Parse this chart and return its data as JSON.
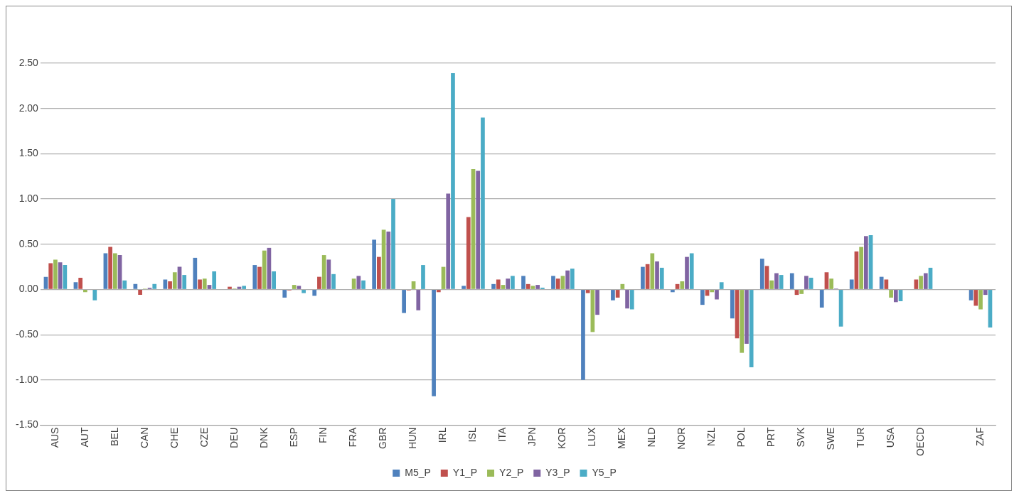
{
  "chart_data": {
    "type": "bar",
    "categories": [
      "AUS",
      "AUT",
      "BEL",
      "CAN",
      "CHE",
      "CZE",
      "DEU",
      "DNK",
      "ESP",
      "FIN",
      "FRA",
      "GBR",
      "HUN",
      "IRL",
      "ISL",
      "ITA",
      "JPN",
      "KOR",
      "LUX",
      "MEX",
      "NLD",
      "NOR",
      "NZL",
      "POL",
      "PRT",
      "SVK",
      "SWE",
      "TUR",
      "USA",
      "OECD",
      null,
      "ZAF"
    ],
    "series": [
      {
        "name": "M5_P",
        "color": "#4f81bd",
        "values": [
          0.14,
          0.08,
          0.4,
          0.06,
          0.11,
          0.35,
          0.0,
          0.27,
          -0.09,
          -0.07,
          0,
          0.55,
          -0.26,
          -1.18,
          0.04,
          0.06,
          0.15,
          0.15,
          -1.0,
          -0.12,
          0.25,
          -0.03,
          -0.17,
          -0.32,
          0.34,
          0.18,
          -0.2,
          0.11,
          0.14,
          0,
          null,
          -0.12
        ]
      },
      {
        "name": "Y1_P",
        "color": "#c0504d",
        "values": [
          0.29,
          0.13,
          0.47,
          -0.06,
          0.09,
          0.11,
          0.03,
          0.25,
          -0.01,
          0.14,
          0,
          0.36,
          -0.01,
          -0.03,
          0.8,
          0.11,
          0.06,
          0.12,
          -0.04,
          -0.09,
          0.28,
          0.06,
          -0.07,
          -0.54,
          0.26,
          -0.06,
          0.19,
          0.42,
          0.11,
          0.11,
          null,
          -0.18
        ]
      },
      {
        "name": "Y2_P",
        "color": "#9bbb59",
        "values": [
          0.33,
          -0.03,
          0.4,
          0.01,
          0.19,
          0.12,
          0.01,
          0.43,
          0.05,
          0.38,
          0.12,
          0.66,
          0.09,
          0.25,
          1.33,
          0.05,
          0.04,
          0.15,
          -0.47,
          0.06,
          0.4,
          0.09,
          -0.03,
          -0.7,
          0.1,
          -0.05,
          0.12,
          0.47,
          -0.09,
          0.15,
          null,
          -0.22
        ]
      },
      {
        "name": "Y3_P",
        "color": "#8064a2",
        "values": [
          0.3,
          0,
          0.38,
          0.02,
          0.25,
          0.05,
          0.03,
          0.46,
          0.04,
          0.33,
          0.15,
          0.64,
          -0.23,
          1.06,
          1.31,
          0.12,
          0.05,
          0.21,
          -0.28,
          -0.21,
          0.31,
          0.36,
          -0.11,
          -0.6,
          0.18,
          0.15,
          0.01,
          0.59,
          -0.14,
          0.18,
          null,
          -0.06
        ]
      },
      {
        "name": "Y5_P",
        "color": "#4bacc6",
        "values": [
          0.27,
          -0.12,
          0.1,
          0.06,
          0.16,
          0.2,
          0.04,
          0.2,
          -0.04,
          0.17,
          0.1,
          1.0,
          0.27,
          2.39,
          1.9,
          0.15,
          0.02,
          0.23,
          0,
          -0.22,
          0.24,
          0.4,
          0.08,
          -0.86,
          0.16,
          0.13,
          -0.41,
          0.6,
          -0.13,
          0.24,
          null,
          -0.42
        ]
      }
    ],
    "ylim": [
      -1.5,
      2.5
    ],
    "yticks": [
      {
        "value": -1.5,
        "label": "-1.50"
      },
      {
        "value": -1,
        "label": "-1.00"
      },
      {
        "value": -0.5,
        "label": "-0.50"
      },
      {
        "value": 0,
        "label": "0.00"
      },
      {
        "value": 0.5,
        "label": "0.50"
      },
      {
        "value": 1,
        "label": "1.00"
      },
      {
        "value": 1.5,
        "label": "1.50"
      },
      {
        "value": 2,
        "label": "2.00"
      },
      {
        "value": 2.5,
        "label": "2.50"
      }
    ],
    "grid": "y",
    "legend": "bottom"
  }
}
